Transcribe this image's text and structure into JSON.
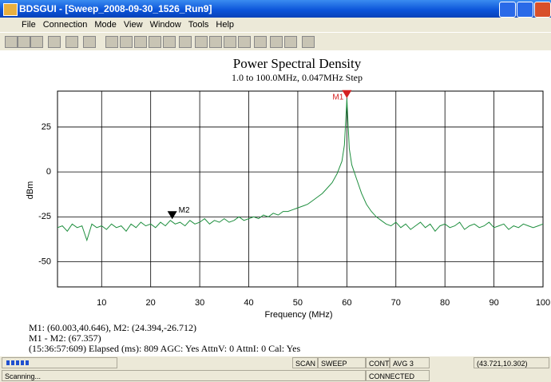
{
  "window": {
    "title": "BDSGUI - [Sweep_2008-09-30_1526_Run9]",
    "menu": [
      "File",
      "Connection",
      "Mode",
      "View",
      "Window",
      "Tools",
      "Help"
    ]
  },
  "chart_data": {
    "type": "line",
    "title": "Power Spectral Density",
    "subtitle": "1.0 to 100.0MHz, 0.047MHz Step",
    "x_label": "Frequency (MHz)",
    "y_label": "dBm",
    "color": "#1f8f3f",
    "grid": true,
    "x": [
      1,
      2,
      3,
      4,
      5,
      6,
      7,
      8,
      9,
      10,
      11,
      12,
      13,
      14,
      15,
      16,
      17,
      18,
      19,
      20,
      21,
      22,
      23,
      24,
      25,
      26,
      27,
      28,
      29,
      30,
      31,
      32,
      33,
      34,
      35,
      36,
      37,
      38,
      39,
      40,
      41,
      42,
      43,
      44,
      45,
      46,
      47,
      48,
      49,
      50,
      51,
      52,
      53,
      54,
      55,
      56,
      57,
      58,
      59,
      59.5,
      60.003,
      60.5,
      61,
      62,
      63,
      64,
      65,
      66,
      67,
      68,
      69,
      70,
      71,
      72,
      73,
      74,
      75,
      76,
      77,
      78,
      79,
      80,
      81,
      82,
      83,
      84,
      85,
      86,
      87,
      88,
      89,
      90,
      91,
      92,
      93,
      94,
      95,
      96,
      97,
      98,
      99,
      100
    ],
    "values": [
      -31,
      -30,
      -33,
      -29,
      -31,
      -30,
      -38,
      -29,
      -31,
      -30,
      -32,
      -29,
      -31,
      -30,
      -33,
      -29,
      -31,
      -28,
      -30,
      -29,
      -31,
      -28,
      -30,
      -27,
      -29,
      -28,
      -30,
      -27,
      -29,
      -28,
      -26,
      -29,
      -27,
      -28,
      -26,
      -28,
      -27,
      -25,
      -27,
      -26,
      -25,
      -26,
      -24,
      -25,
      -23,
      -24,
      -22,
      -22,
      -21,
      -20,
      -19,
      -18,
      -16,
      -14,
      -12,
      -9,
      -6,
      -1,
      6,
      15,
      40.646,
      13,
      4,
      -4,
      -12,
      -18,
      -22,
      -25,
      -27,
      -29,
      -30,
      -28,
      -31,
      -29,
      -32,
      -30,
      -28,
      -31,
      -29,
      -33,
      -30,
      -29,
      -31,
      -30,
      -28,
      -32,
      -30,
      -29,
      -31,
      -30,
      -28,
      -31,
      -30,
      -29,
      -32,
      -30,
      -31,
      -29,
      -30,
      -31,
      -30,
      -29
    ],
    "xlim": [
      1,
      100
    ],
    "ylim": [
      -64,
      45
    ],
    "xticks": [
      10,
      20,
      30,
      40,
      50,
      60,
      70,
      80,
      90,
      100
    ],
    "yticks": [
      25,
      0,
      -25,
      -50
    ],
    "annotations": [
      {
        "label": "M1",
        "x": 60.003,
        "y": 40.646,
        "color": "#d42020"
      },
      {
        "label": "M2",
        "x": 24.394,
        "y": -26.712,
        "color": "#000000"
      }
    ]
  },
  "info": [
    "M1: (60.003,40.646), M2: (24.394,-26.712)",
    "M1 - M2: (67.357)",
    "(15:36:57:609) Elapsed (ms): 809 AGC: Yes AttnV: 0 AttnI: 0 Cal: Yes"
  ],
  "status": {
    "top": [
      "SCAN",
      "SWEEP",
      "CONT",
      "AVG 3",
      "(43.721,10.302)"
    ],
    "bottom": [
      "Scanning...",
      "CONNECTED"
    ]
  }
}
